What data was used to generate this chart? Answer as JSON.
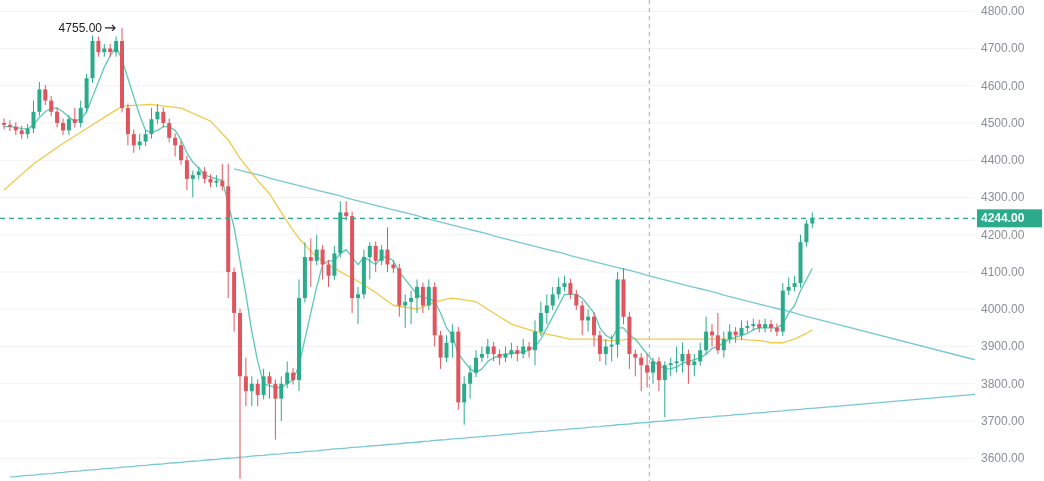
{
  "chart_data": {
    "type": "candlestick",
    "colors": [
      "#df555e",
      "#df555e",
      "#df555e",
      "#df555e",
      "#2bab8b",
      "#2bab8b",
      "#2bab8b",
      "#df555e",
      "#df555e",
      "#df555e",
      "#df555e",
      "#2bab8b",
      "#df555e",
      "#2bab8b",
      "#2bab8b",
      "#2bab8b",
      "#df555e",
      "#2bab8b",
      "#df555e",
      "#2bab8b",
      "#df555e",
      "#df555e",
      "#df555e",
      "#2bab8b",
      "#2bab8b",
      "#2bab8b",
      "#2bab8b",
      "#df555e",
      "#df555e",
      "#df555e",
      "#df555e",
      "#df555e",
      "#2bab8b",
      "#2bab8b",
      "#df555e",
      "#df555e",
      "#2bab8b",
      "#df555e",
      "#df555e",
      "#df555e",
      "#df555e",
      "#df555e",
      "#2bab8b",
      "#df555e",
      "#2bab8b",
      "#df555e",
      "#df555e",
      "#2bab8b",
      "#2bab8b",
      "#df555e",
      "#2bab8b",
      "#2bab8b",
      "#df555e",
      "#2bab8b",
      "#df555e",
      "#df555e",
      "#2bab8b",
      "#2bab8b",
      "#df555e",
      "#df555e",
      "#2bab8b",
      "#2bab8b",
      "#2bab8b",
      "#df555e",
      "#2bab8b",
      "#df555e",
      "#df555e",
      "#df555e",
      "#2bab8b",
      "#2bab8b",
      "#2bab8b",
      "#df555e",
      "#2bab8b",
      "#df555e",
      "#df555e",
      "#2bab8b",
      "#2bab8b",
      "#df555e",
      "#2bab8b",
      "#2bab8b",
      "#2bab8b",
      "#2bab8b",
      "#2bab8b",
      "#df555e",
      "#df555e",
      "#2bab8b",
      "#2bab8b",
      "#df555e",
      "#2bab8b",
      "#df555e",
      "#2bab8b",
      "#2bab8b",
      "#2bab8b",
      "#2bab8b",
      "#2bab8b",
      "#2bab8b",
      "#df555e",
      "#df555e",
      "#df555e",
      "#2bab8b",
      "#df555e",
      "#df555e",
      "#2bab8b",
      "#2bab8b",
      "#2bab8b",
      "#df555e",
      "#df555e",
      "#df555e",
      "#df555e",
      "#df555e",
      "#2bab8b",
      "#df555e",
      "#2bab8b",
      "#2bab8b",
      "#2bab8b",
      "#2bab8b",
      "#df555e",
      "#2bab8b",
      "#2bab8b",
      "#2bab8b",
      "#df555e",
      "#df555e",
      "#2bab8b",
      "#2bab8b",
      "#df555e",
      "#2bab8b",
      "#2bab8b",
      "#2bab8b",
      "#df555e",
      "#2bab8b",
      "#df555e",
      "#df555e",
      "#2bab8b",
      "#2bab8b",
      "#2bab8b",
      "#2bab8b",
      "#2bab8b",
      "#2bab8b"
    ],
    "categories": [
      null,
      null,
      null,
      null,
      null,
      null,
      null,
      null,
      null,
      null,
      null,
      null,
      null,
      null,
      null,
      null,
      null,
      null,
      null,
      null,
      null,
      null,
      null,
      null,
      null,
      null,
      null,
      null,
      null,
      null,
      null,
      null,
      null,
      null,
      null,
      null,
      null,
      null,
      null,
      null,
      null,
      null,
      null,
      null,
      null,
      null,
      null,
      null,
      null,
      null,
      null,
      null,
      null,
      null,
      null,
      null,
      null,
      null,
      null,
      null,
      null,
      null,
      null,
      null,
      null,
      null,
      null,
      null,
      null,
      null,
      null,
      null,
      null,
      null,
      null,
      null,
      null,
      null,
      null,
      null,
      null,
      null,
      null,
      null,
      null,
      null,
      null,
      null,
      null,
      null,
      null,
      null,
      null,
      null,
      null,
      null,
      null,
      null,
      null,
      null,
      null,
      null,
      null,
      null,
      null,
      null,
      null,
      null,
      null,
      null,
      null,
      null,
      null,
      null,
      null,
      null,
      null,
      null,
      null,
      null,
      null,
      null,
      null,
      null,
      null,
      null,
      null,
      null,
      null,
      null,
      null,
      null,
      null,
      null,
      null,
      null,
      null,
      null
    ],
    "ohlc": [
      [
        4500,
        4512,
        4483,
        4495
      ],
      [
        4495,
        4507,
        4478,
        4490
      ],
      [
        4490,
        4502,
        4468,
        4480
      ],
      [
        4480,
        4492,
        4458,
        4470
      ],
      [
        4470,
        4497,
        4458,
        4485
      ],
      [
        4485,
        4560,
        4473,
        4530
      ],
      [
        4530,
        4610,
        4518,
        4590
      ],
      [
        4590,
        4602,
        4548,
        4560
      ],
      [
        4560,
        4572,
        4518,
        4530
      ],
      [
        4530,
        4542,
        4488,
        4500
      ],
      [
        4500,
        4512,
        4468,
        4480
      ],
      [
        4480,
        4522,
        4468,
        4510
      ],
      [
        4510,
        4540,
        4488,
        4500
      ],
      [
        4500,
        4560,
        4488,
        4540
      ],
      [
        4540,
        4632,
        4528,
        4620
      ],
      [
        4620,
        4735,
        4608,
        4720
      ],
      [
        4720,
        4732,
        4678,
        4690
      ],
      [
        4690,
        4712,
        4678,
        4700
      ],
      [
        4700,
        4712,
        4678,
        4690
      ],
      [
        4690,
        4732,
        4678,
        4720
      ],
      [
        4720,
        4755,
        4528,
        4540
      ],
      [
        4540,
        4552,
        4440,
        4470
      ],
      [
        4470,
        4482,
        4420,
        4440
      ],
      [
        4440,
        4470,
        4428,
        4450
      ],
      [
        4450,
        4482,
        4438,
        4470
      ],
      [
        4470,
        4540,
        4458,
        4510
      ],
      [
        4510,
        4550,
        4498,
        4530
      ],
      [
        4530,
        4542,
        4488,
        4500
      ],
      [
        4500,
        4512,
        4448,
        4460
      ],
      [
        4460,
        4472,
        4410,
        4440
      ],
      [
        4440,
        4452,
        4388,
        4400
      ],
      [
        4400,
        4412,
        4320,
        4350
      ],
      [
        4350,
        4372,
        4300,
        4360
      ],
      [
        4360,
        4382,
        4348,
        4370
      ],
      [
        4370,
        4382,
        4338,
        4350
      ],
      [
        4350,
        4362,
        4328,
        4340
      ],
      [
        4340,
        4360,
        4328,
        4345
      ],
      [
        4345,
        4390,
        4318,
        4330
      ],
      [
        4330,
        4390,
        4030,
        4100
      ],
      [
        4100,
        4112,
        3940,
        3990
      ],
      [
        3990,
        4002,
        3545,
        3820
      ],
      [
        3820,
        3870,
        3740,
        3780
      ],
      [
        3780,
        3820,
        3740,
        3800
      ],
      [
        3800,
        3812,
        3740,
        3770
      ],
      [
        3770,
        3840,
        3758,
        3820
      ],
      [
        3820,
        3832,
        3760,
        3800
      ],
      [
        3800,
        3812,
        3650,
        3760
      ],
      [
        3760,
        3820,
        3700,
        3800
      ],
      [
        3800,
        3860,
        3788,
        3830
      ],
      [
        3830,
        3842,
        3798,
        3810
      ],
      [
        3810,
        4080,
        3780,
        4030
      ],
      [
        4030,
        4180,
        4018,
        4140
      ],
      [
        4140,
        4190,
        4060,
        4130
      ],
      [
        4130,
        4200,
        4118,
        4160
      ],
      [
        4160,
        4172,
        4080,
        4120
      ],
      [
        4120,
        4132,
        4060,
        4090
      ],
      [
        4090,
        4170,
        4078,
        4150
      ],
      [
        4150,
        4290,
        4138,
        4260
      ],
      [
        4260,
        4290,
        4238,
        4250
      ],
      [
        4250,
        4262,
        3990,
        4030
      ],
      [
        4030,
        4060,
        3960,
        4040
      ],
      [
        4040,
        4160,
        4028,
        4140
      ],
      [
        4140,
        4180,
        4080,
        4170
      ],
      [
        4170,
        4182,
        4100,
        4130
      ],
      [
        4130,
        4172,
        4118,
        4160
      ],
      [
        4160,
        4220,
        4100,
        4120
      ],
      [
        4120,
        4132,
        4098,
        4110
      ],
      [
        4110,
        4122,
        3980,
        4010
      ],
      [
        4010,
        4040,
        3950,
        4020
      ],
      [
        4020,
        4050,
        3960,
        4030
      ],
      [
        4030,
        4080,
        3990,
        4060
      ],
      [
        4060,
        4072,
        3990,
        4010
      ],
      [
        4010,
        4080,
        3998,
        4060
      ],
      [
        4060,
        4072,
        3900,
        3930
      ],
      [
        3930,
        3942,
        3840,
        3870
      ],
      [
        3870,
        3930,
        3858,
        3910
      ],
      [
        3910,
        3960,
        3870,
        3940
      ],
      [
        3940,
        3952,
        3730,
        3750
      ],
      [
        3750,
        3820,
        3690,
        3800
      ],
      [
        3800,
        3850,
        3760,
        3830
      ],
      [
        3830,
        3890,
        3818,
        3870
      ],
      [
        3870,
        3900,
        3858,
        3880
      ],
      [
        3880,
        3920,
        3868,
        3900
      ],
      [
        3900,
        3912,
        3860,
        3880
      ],
      [
        3880,
        3892,
        3850,
        3870
      ],
      [
        3870,
        3900,
        3858,
        3880
      ],
      [
        3880,
        3910,
        3868,
        3890
      ],
      [
        3890,
        3902,
        3860,
        3880
      ],
      [
        3880,
        3920,
        3868,
        3900
      ],
      [
        3900,
        3912,
        3870,
        3890
      ],
      [
        3890,
        3970,
        3850,
        3940
      ],
      [
        3940,
        4020,
        3928,
        3990
      ],
      [
        3990,
        4040,
        3960,
        4010
      ],
      [
        4010,
        4060,
        3998,
        4040
      ],
      [
        4040,
        4085,
        4028,
        4060
      ],
      [
        4060,
        4090,
        4048,
        4070
      ],
      [
        4070,
        4082,
        4028,
        4040
      ],
      [
        4040,
        4052,
        3998,
        4010
      ],
      [
        4010,
        4022,
        3930,
        3970
      ],
      [
        3970,
        4000,
        3940,
        3980
      ],
      [
        3980,
        3992,
        3900,
        3930
      ],
      [
        3930,
        3942,
        3860,
        3880
      ],
      [
        3880,
        3920,
        3850,
        3900
      ],
      [
        3900,
        3930,
        3860,
        3905
      ],
      [
        3905,
        4100,
        3870,
        4080
      ],
      [
        4080,
        4110,
        3960,
        3980
      ],
      [
        3980,
        3992,
        3840,
        3880
      ],
      [
        3880,
        3892,
        3820,
        3870
      ],
      [
        3870,
        3882,
        3780,
        3850
      ],
      [
        3850,
        3880,
        3790,
        3830
      ],
      [
        3830,
        3870,
        3800,
        3860
      ],
      [
        3860,
        3872,
        3780,
        3810
      ],
      [
        3810,
        3860,
        3710,
        3850
      ],
      [
        3850,
        3870,
        3820,
        3855
      ],
      [
        3855,
        3900,
        3830,
        3860
      ],
      [
        3860,
        3910,
        3830,
        3880
      ],
      [
        3880,
        3892,
        3800,
        3850
      ],
      [
        3850,
        3880,
        3820,
        3860
      ],
      [
        3860,
        3910,
        3848,
        3890
      ],
      [
        3890,
        3980,
        3878,
        3940
      ],
      [
        3940,
        3960,
        3900,
        3930
      ],
      [
        3930,
        3990,
        3880,
        3890
      ],
      [
        3890,
        3940,
        3870,
        3920
      ],
      [
        3920,
        3960,
        3908,
        3940
      ],
      [
        3940,
        3952,
        3910,
        3930
      ],
      [
        3930,
        3970,
        3918,
        3950
      ],
      [
        3950,
        3970,
        3938,
        3955
      ],
      [
        3955,
        3975,
        3943,
        3960
      ],
      [
        3960,
        3972,
        3938,
        3950
      ],
      [
        3950,
        3975,
        3938,
        3960
      ],
      [
        3960,
        3972,
        3938,
        3950
      ],
      [
        3950,
        3962,
        3928,
        3940
      ],
      [
        3940,
        4070,
        3928,
        4050
      ],
      [
        4050,
        4085,
        4038,
        4060
      ],
      [
        4060,
        4090,
        4048,
        4070
      ],
      [
        4070,
        4200,
        4058,
        4180
      ],
      [
        4180,
        4240,
        4168,
        4230
      ],
      [
        4230,
        4260,
        4218,
        4244
      ]
    ],
    "series": [
      {
        "type": "line",
        "color": "#79c7d6",
        "values": [
          null,
          null,
          null,
          null,
          null,
          null,
          null,
          null,
          null,
          null,
          null,
          null,
          null,
          null,
          null,
          null,
          null,
          null,
          null,
          null,
          null,
          null,
          null,
          null,
          null,
          null,
          null,
          null,
          null,
          null,
          null,
          null,
          null,
          null,
          null,
          null,
          null,
          null,
          null,
          4377,
          4373,
          4369,
          4365,
          4361,
          4357,
          4352,
          4348,
          4344,
          4340,
          4336,
          4332,
          4328,
          4324,
          4320,
          4316,
          4312,
          4308,
          4304,
          4299,
          4295,
          4291,
          4287,
          4283,
          4279,
          4275,
          4271,
          4267,
          4263,
          4259,
          4255,
          4251,
          4246,
          4242,
          4238,
          4234,
          4230,
          4226,
          4222,
          4218,
          4214,
          4210,
          4206,
          4202,
          4197,
          4193,
          4189,
          4185,
          4181,
          4177,
          4173,
          4169,
          4165,
          4161,
          4157,
          4153,
          4149,
          4144,
          4140,
          4136,
          4132,
          4128,
          4124,
          4120,
          4116,
          4112,
          4108,
          4104,
          4100,
          4096,
          4091,
          4087,
          4083,
          4079,
          4075,
          4071,
          4067,
          4063,
          4059,
          4055,
          4051,
          4047,
          4043,
          4038,
          4034,
          4030,
          4026,
          4022,
          4018,
          4014,
          4010,
          4006,
          4002,
          3998,
          3994,
          3990,
          3985,
          3981,
          3977
        ]
      },
      {
        "type": "line",
        "color": "#79c7d6",
        "values": [
          null,
          3550,
          3551,
          3553,
          3554,
          3555,
          3557,
          3558,
          3559,
          3561,
          3562,
          3564,
          3565,
          3566,
          3568,
          3569,
          3570,
          3572,
          3573,
          3574,
          3576,
          3577,
          3578,
          3580,
          3581,
          3583,
          3584,
          3585,
          3587,
          3588,
          3589,
          3591,
          3592,
          3593,
          3595,
          3596,
          3597,
          3599,
          3600,
          3601,
          3603,
          3604,
          3606,
          3607,
          3608,
          3610,
          3611,
          3612,
          3614,
          3615,
          3616,
          3618,
          3619,
          3620,
          3622,
          3623,
          3625,
          3626,
          3627,
          3629,
          3630,
          3631,
          3633,
          3634,
          3635,
          3637,
          3638,
          3639,
          3641,
          3642,
          3643,
          3645,
          3646,
          3648,
          3649,
          3650,
          3652,
          3653,
          3654,
          3656,
          3657,
          3658,
          3660,
          3661,
          3662,
          3664,
          3665,
          3667,
          3668,
          3669,
          3671,
          3672,
          3673,
          3675,
          3676,
          3677,
          3679,
          3680,
          3681,
          3683,
          3684,
          3685,
          3687,
          3688,
          3690,
          3691,
          3692,
          3694,
          3695,
          3696,
          3698,
          3699,
          3700,
          3702,
          3703,
          3704,
          3706,
          3707,
          3709,
          3710,
          3711,
          3713,
          3714,
          3715,
          3717,
          3718,
          3719,
          3721,
          3722,
          3723,
          3725,
          3726,
          3727,
          3729,
          3730,
          3731,
          3733,
          3734
        ]
      },
      {
        "type": "line",
        "color": "#f2c94c",
        "values": [
          4320,
          4334,
          4348,
          4362,
          4376,
          4390,
          4401,
          4412,
          4423,
          4434,
          4445,
          4455,
          4465,
          4475,
          4485,
          4495,
          4505,
          4515,
          4525,
          4535,
          4545,
          4546,
          4547,
          4548,
          4549,
          4550,
          4548,
          4546,
          4544,
          4542,
          4540,
          4533,
          4526,
          4519,
          4512,
          4505,
          4488,
          4471,
          4455,
          4430,
          4405,
          4385,
          4365,
          4345,
          4328,
          4310,
          4285,
          4260,
          4235,
          4212,
          4190,
          4173,
          4156,
          4140,
          4130,
          4120,
          4110,
          4101,
          4092,
          4084,
          4075,
          4065,
          4055,
          4045,
          4033,
          4022,
          4010,
          4008,
          4005,
          4003,
          4000,
          4007,
          4013,
          4020,
          4023,
          4027,
          4030,
          4028,
          4025,
          4023,
          4020,
          4010,
          4000,
          3990,
          3980,
          3970,
          3960,
          3955,
          3950,
          3945,
          3940,
          3937,
          3933,
          3930,
          3927,
          3923,
          3920,
          3920,
          3920,
          3920,
          3920,
          3918,
          3917,
          3915,
          3917,
          3918,
          3920,
          3920,
          3920,
          3920,
          3920,
          3920,
          3920,
          3920,
          3920,
          3920,
          3920,
          3920,
          3920,
          3920,
          3920,
          3920,
          3920,
          3920,
          3920,
          3920,
          3918,
          3917,
          3916,
          3914,
          3910,
          3910,
          3910,
          3915,
          3920,
          3928,
          3935,
          3945
        ]
      },
      {
        "type": "line",
        "color": "#5cc9b4",
        "values": [
          4490,
          4490,
          4488,
          4485,
          4484,
          4495,
          4515,
          4530,
          4540,
          4540,
          4530,
          4515,
          4505,
          4510,
          4530,
          4570,
          4610,
          4650,
          4680,
          4705,
          4670,
          4620,
          4570,
          4520,
          4480,
          4475,
          4480,
          4490,
          4490,
          4480,
          4455,
          4420,
          4395,
          4380,
          4360,
          4355,
          4350,
          4345,
          null,
          4220,
          4130,
          4040,
          3940,
          3860,
          3800,
          3795,
          3790,
          3790,
          3800,
          3810,
          3850,
          3920,
          3990,
          4060,
          4120,
          4130,
          4130,
          4150,
          4160,
          4140,
          4120,
          4140,
          4130,
          4120,
          4140,
          4140,
          4130,
          4100,
          4080,
          4060,
          4040,
          4030,
          4030,
          4020,
          3990,
          3950,
          3930,
          3880,
          3860,
          3840,
          3830,
          3840,
          3860,
          3870,
          3875,
          3880,
          3880,
          3885,
          3885,
          3890,
          3900,
          3920,
          3950,
          3980,
          4010,
          4040,
          4040,
          4040,
          4030,
          4010,
          3990,
          3950,
          3930,
          3920,
          3950,
          3950,
          3930,
          3920,
          3900,
          3880,
          3860,
          3850,
          3840,
          3840,
          3845,
          3855,
          3860,
          3865,
          3870,
          3880,
          3895,
          3900,
          3910,
          3920,
          3925,
          3930,
          3935,
          3945,
          3950,
          3950,
          3950,
          3950,
          3960,
          3990,
          4010,
          4050,
          4080,
          4110
        ]
      }
    ],
    "ylim": [
      3539,
      4830
    ],
    "yticks": [
      {
        "value": 3600,
        "label": "3600.00"
      },
      {
        "value": 3700,
        "label": "3700.00"
      },
      {
        "value": 3800,
        "label": "3800.00"
      },
      {
        "value": 3900,
        "label": "3900.00"
      },
      {
        "value": 4000,
        "label": "4000.00"
      },
      {
        "value": 4100,
        "label": "4100.00"
      },
      {
        "value": 4200,
        "label": "4200.00"
      },
      {
        "value": 4300,
        "label": "4300.00"
      },
      {
        "value": 4400,
        "label": "4400.00"
      },
      {
        "value": 4500,
        "label": "4500.00"
      },
      {
        "value": 4600,
        "label": "4600.00"
      },
      {
        "value": 4700,
        "label": "4700.00"
      },
      {
        "value": 4800,
        "label": "4800.00"
      }
    ],
    "tick_labels": "y",
    "grid": "y",
    "ref_lines": [
      {
        "axis": "y",
        "value": 4244,
        "label": "4244.00",
        "color": "#2bab8b",
        "line_style": "dashed"
      }
    ],
    "annotations": [
      "4755.00"
    ]
  }
}
